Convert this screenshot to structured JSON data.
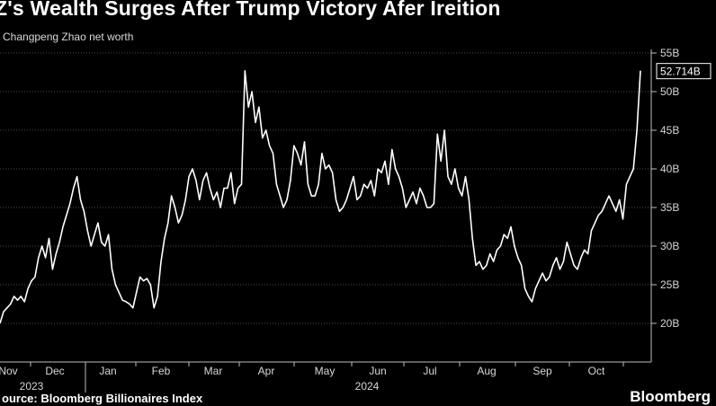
{
  "header": {
    "title": "Z's Wealth Surges After Trump Victory Afer Ireition",
    "subtitle": "Changpeng Zhao net worth"
  },
  "footer": {
    "source": "ource: Bloomberg Billionaires Index",
    "brand": "Bloomberg"
  },
  "colors": {
    "background": "#000000",
    "line": "#ffffff",
    "gridline": "#3a3a3a",
    "text": "#ffffff"
  },
  "chart_data": {
    "type": "line",
    "title": "Z's Wealth Surges After Trump Victory Afer Ireition",
    "subtitle": "Changpeng Zhao net worth",
    "y_unit": "B",
    "ylim": [
      15,
      55
    ],
    "y_ticks": [
      20,
      25,
      30,
      35,
      40,
      45,
      50,
      55
    ],
    "y_tick_labels": [
      "20B",
      "25B",
      "30B",
      "35B",
      "40B",
      "45B",
      "50B",
      "55B"
    ],
    "grid": "horizontal dotted",
    "last_value_label": "52.714B",
    "x_months": [
      "Nov",
      "Dec",
      "Jan",
      "Feb",
      "Mar",
      "Apr",
      "May",
      "Jun",
      "Jul",
      "Aug",
      "Sep",
      "Oct"
    ],
    "x_years": [
      {
        "label": "2023",
        "under": "Nov"
      },
      {
        "label": "2024",
        "under": "Jun"
      }
    ],
    "series": [
      {
        "values": [
          [
            0,
            20.0
          ],
          [
            2,
            21.5
          ],
          [
            4,
            22.0
          ],
          [
            6,
            22.5
          ],
          [
            8,
            23.5
          ],
          [
            10,
            23.0
          ],
          [
            12,
            23.5
          ],
          [
            14,
            22.8
          ],
          [
            16,
            24.5
          ],
          [
            18,
            25.5
          ],
          [
            20,
            26.0
          ],
          [
            22,
            28.5
          ],
          [
            24,
            30.0
          ],
          [
            26,
            28.5
          ],
          [
            28,
            31.0
          ],
          [
            30,
            27.0
          ],
          [
            32,
            29.0
          ],
          [
            34,
            30.5
          ],
          [
            36,
            32.5
          ],
          [
            38,
            34.0
          ],
          [
            40,
            35.5
          ],
          [
            42,
            37.5
          ],
          [
            44,
            39.0
          ],
          [
            46,
            36.0
          ],
          [
            48,
            34.5
          ],
          [
            50,
            32.0
          ],
          [
            52,
            30.0
          ],
          [
            54,
            31.5
          ],
          [
            56,
            33.0
          ],
          [
            58,
            30.5
          ],
          [
            60,
            30.0
          ],
          [
            62,
            31.5
          ],
          [
            64,
            27.0
          ],
          [
            66,
            25.0
          ],
          [
            68,
            24.0
          ],
          [
            70,
            23.0
          ],
          [
            72,
            22.8
          ],
          [
            74,
            22.5
          ],
          [
            76,
            22.0
          ],
          [
            78,
            24.0
          ],
          [
            80,
            26.0
          ],
          [
            82,
            25.5
          ],
          [
            84,
            25.8
          ],
          [
            86,
            25.0
          ],
          [
            88,
            22.0
          ],
          [
            90,
            23.5
          ],
          [
            92,
            28.0
          ],
          [
            94,
            31.0
          ],
          [
            96,
            33.0
          ],
          [
            98,
            36.5
          ],
          [
            100,
            35.0
          ],
          [
            102,
            33.0
          ],
          [
            104,
            34.0
          ],
          [
            106,
            36.0
          ],
          [
            108,
            39.0
          ],
          [
            110,
            40.0
          ],
          [
            112,
            38.5
          ],
          [
            114,
            36.0
          ],
          [
            116,
            38.5
          ],
          [
            118,
            39.5
          ],
          [
            120,
            37.5
          ],
          [
            122,
            36.0
          ],
          [
            124,
            37.0
          ],
          [
            126,
            35.0
          ],
          [
            128,
            37.5
          ],
          [
            130,
            37.5
          ],
          [
            132,
            39.5
          ],
          [
            134,
            35.5
          ],
          [
            136,
            37.5
          ],
          [
            138,
            38.0
          ],
          [
            140,
            52.7
          ],
          [
            142,
            48.0
          ],
          [
            144,
            50.0
          ],
          [
            146,
            46.0
          ],
          [
            148,
            48.0
          ],
          [
            150,
            44.0
          ],
          [
            152,
            45.0
          ],
          [
            154,
            43.0
          ],
          [
            156,
            42.0
          ],
          [
            158,
            38.0
          ],
          [
            160,
            36.5
          ],
          [
            162,
            35.0
          ],
          [
            164,
            36.0
          ],
          [
            166,
            38.5
          ],
          [
            168,
            43.0
          ],
          [
            170,
            42.0
          ],
          [
            172,
            40.5
          ],
          [
            174,
            43.5
          ],
          [
            176,
            38.0
          ],
          [
            178,
            36.5
          ],
          [
            180,
            36.5
          ],
          [
            182,
            38.0
          ],
          [
            184,
            42.0
          ],
          [
            186,
            40.0
          ],
          [
            188,
            40.5
          ],
          [
            190,
            39.5
          ],
          [
            192,
            36.0
          ],
          [
            194,
            34.5
          ],
          [
            196,
            35.0
          ],
          [
            198,
            36.0
          ],
          [
            200,
            37.5
          ],
          [
            202,
            39.0
          ],
          [
            204,
            36.0
          ],
          [
            206,
            36.5
          ],
          [
            208,
            38.0
          ],
          [
            210,
            37.5
          ],
          [
            212,
            38.5
          ],
          [
            214,
            36.5
          ],
          [
            216,
            40.0
          ],
          [
            218,
            39.5
          ],
          [
            220,
            41.0
          ],
          [
            222,
            38.0
          ],
          [
            224,
            42.5
          ],
          [
            226,
            40.0
          ],
          [
            228,
            39.0
          ],
          [
            230,
            37.5
          ],
          [
            232,
            35.0
          ],
          [
            234,
            36.0
          ],
          [
            236,
            37.0
          ],
          [
            238,
            35.5
          ],
          [
            240,
            37.5
          ],
          [
            242,
            36.5
          ],
          [
            244,
            35.0
          ],
          [
            246,
            35.0
          ],
          [
            248,
            35.5
          ],
          [
            250,
            44.5
          ],
          [
            252,
            41.0
          ],
          [
            254,
            45.0
          ],
          [
            256,
            39.0
          ],
          [
            258,
            38.0
          ],
          [
            260,
            40.0
          ],
          [
            262,
            37.5
          ],
          [
            264,
            36.5
          ],
          [
            266,
            39.0
          ],
          [
            268,
            36.0
          ],
          [
            270,
            31.0
          ],
          [
            272,
            27.5
          ],
          [
            274,
            28.0
          ],
          [
            276,
            27.0
          ],
          [
            278,
            27.5
          ],
          [
            280,
            29.0
          ],
          [
            282,
            28.0
          ],
          [
            284,
            29.5
          ],
          [
            286,
            30.0
          ],
          [
            288,
            31.5
          ],
          [
            290,
            31.0
          ],
          [
            292,
            32.5
          ],
          [
            294,
            30.0
          ],
          [
            296,
            28.5
          ],
          [
            298,
            27.5
          ],
          [
            300,
            24.5
          ],
          [
            302,
            23.5
          ],
          [
            304,
            22.8
          ],
          [
            306,
            24.5
          ],
          [
            308,
            25.5
          ],
          [
            310,
            26.5
          ],
          [
            312,
            25.5
          ],
          [
            314,
            26.0
          ],
          [
            316,
            27.5
          ],
          [
            318,
            28.5
          ],
          [
            320,
            27.0
          ],
          [
            322,
            28.0
          ],
          [
            324,
            30.5
          ],
          [
            326,
            29.0
          ],
          [
            328,
            27.5
          ],
          [
            330,
            27.0
          ],
          [
            332,
            28.5
          ],
          [
            334,
            29.5
          ],
          [
            336,
            29.0
          ],
          [
            338,
            32.0
          ],
          [
            340,
            33.0
          ],
          [
            342,
            34.0
          ],
          [
            344,
            34.5
          ],
          [
            346,
            35.5
          ],
          [
            348,
            36.5
          ],
          [
            350,
            35.5
          ],
          [
            352,
            34.5
          ],
          [
            354,
            36.0
          ],
          [
            356,
            33.5
          ],
          [
            358,
            38.0
          ],
          [
            360,
            39.0
          ],
          [
            362,
            40.0
          ],
          [
            364,
            45.0
          ],
          [
            366,
            52.714
          ]
        ]
      }
    ]
  }
}
